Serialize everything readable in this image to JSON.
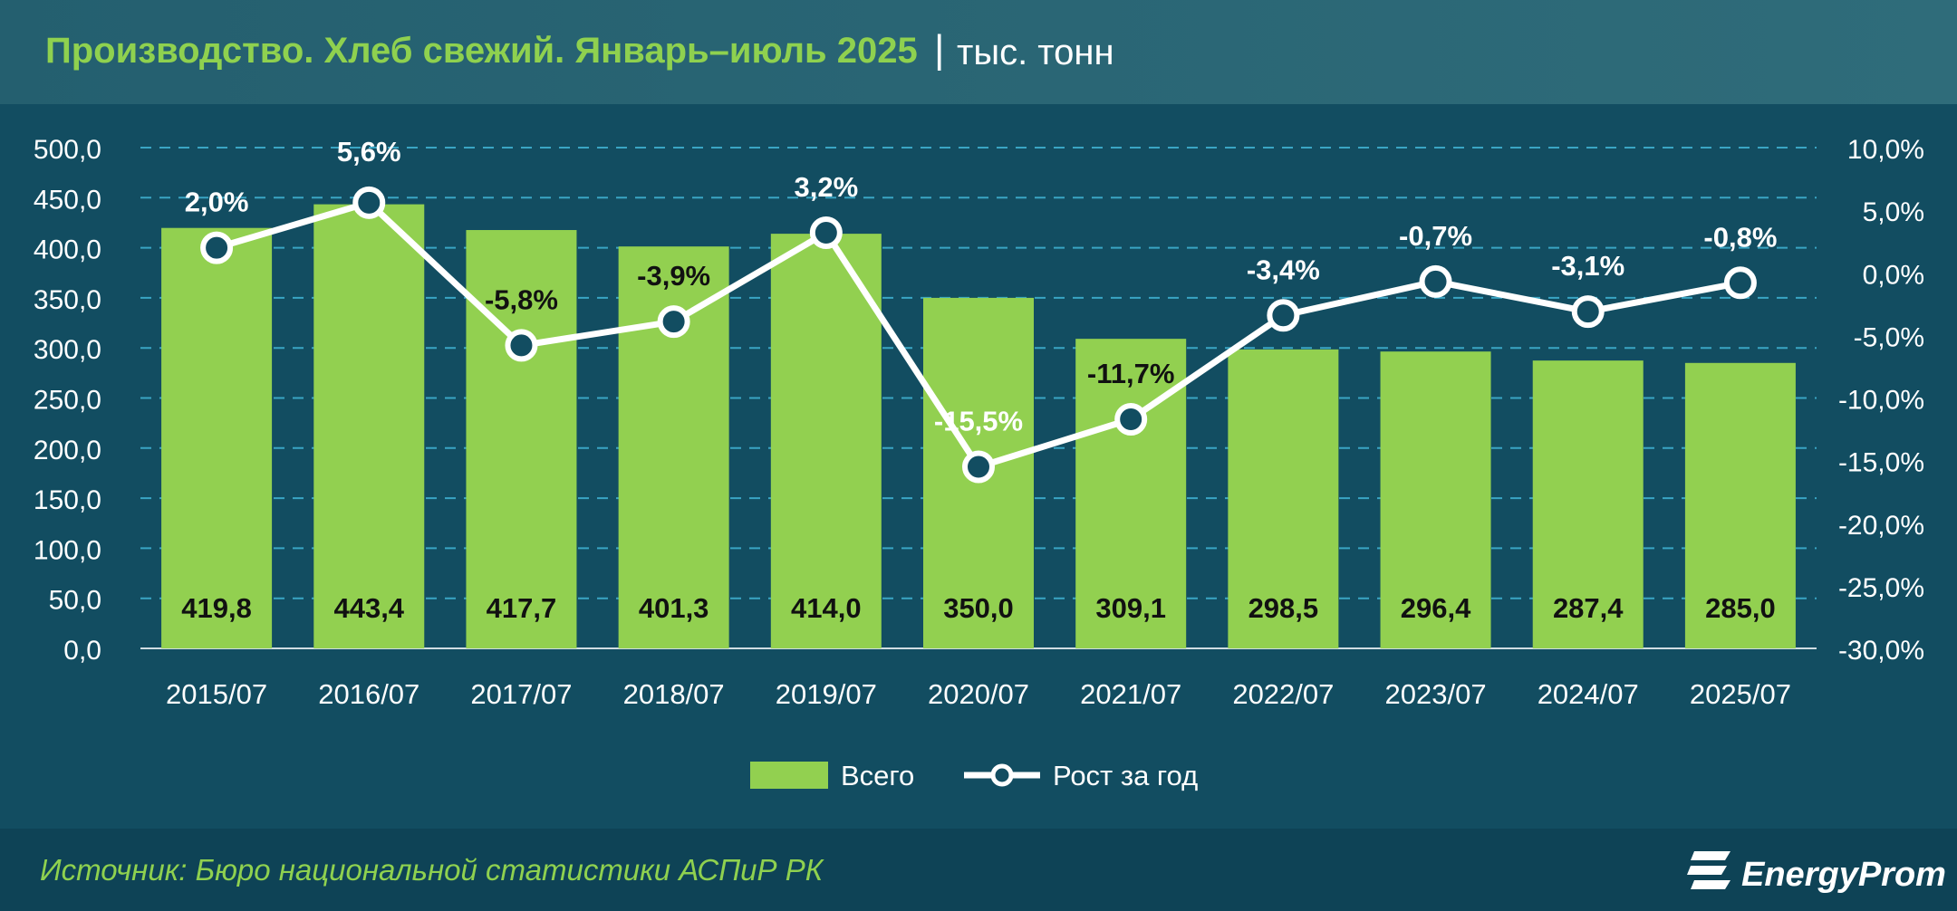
{
  "header": {
    "title": "Производство. Хлеб свежий. Январь–июль 2025",
    "separator": "|",
    "unit": "тыс. тонн"
  },
  "footer": {
    "source": "Источник: Бюро национальной статистики АСПиР РК",
    "logo": "EnergyProm"
  },
  "colors": {
    "background": "#124d61",
    "header": "#2a6675",
    "bar": "#92d050",
    "line": "#ffffff",
    "title": "#8fd14f",
    "text": "#ffffff",
    "gridline": "#3aa5c4"
  },
  "chart_data": {
    "type": "bar",
    "categories": [
      "2015/07",
      "2016/07",
      "2017/07",
      "2018/07",
      "2019/07",
      "2020/07",
      "2021/07",
      "2022/07",
      "2023/07",
      "2024/07",
      "2025/07"
    ],
    "series": [
      {
        "name": "Всего",
        "type": "bar",
        "axis": "left",
        "values": [
          419.8,
          443.4,
          417.7,
          401.3,
          414.0,
          350.0,
          309.1,
          298.5,
          296.4,
          287.4,
          285.0
        ],
        "labels": [
          "419,8",
          "443,4",
          "417,7",
          "401,3",
          "414,0",
          "350,0",
          "309,1",
          "298,5",
          "296,4",
          "287,4",
          "285,0"
        ]
      },
      {
        "name": "Рост за год",
        "type": "line",
        "axis": "right",
        "values": [
          2.0,
          5.6,
          -5.8,
          -3.9,
          3.2,
          -15.5,
          -11.7,
          -3.4,
          -0.7,
          -3.1,
          -0.8
        ],
        "labels": [
          "2,0%",
          "5,6%",
          "-5,8%",
          "-3,9%",
          "3,2%",
          "-15,5%",
          "-11,7%",
          "-3,4%",
          "-0,7%",
          "-3,1%",
          "-0,8%"
        ]
      }
    ],
    "y_left": {
      "min": 0,
      "max": 500,
      "step": 50,
      "ticks": [
        "0,0",
        "50,0",
        "100,0",
        "150,0",
        "200,0",
        "250,0",
        "300,0",
        "350,0",
        "400,0",
        "450,0",
        "500,0"
      ]
    },
    "y_right": {
      "min": -30,
      "max": 10,
      "step": 5,
      "ticks": [
        "-30,0%",
        "-25,0%",
        "-20,0%",
        "-15,0%",
        "-10,0%",
        "-5,0%",
        "0,0%",
        "5,0%",
        "10,0%"
      ]
    },
    "grid": true,
    "legend": "bottom-center"
  }
}
